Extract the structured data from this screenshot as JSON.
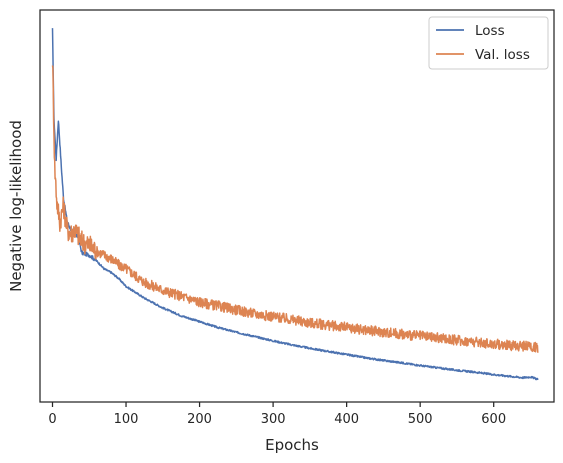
{
  "chart_data": {
    "type": "line",
    "title": "",
    "xlabel": "Epochs",
    "ylabel": "Negative log-likelihood",
    "xlim": [
      -17,
      682
    ],
    "ylim": [
      0,
      100
    ],
    "xticks": [
      0,
      100,
      200,
      300,
      400,
      500,
      600
    ],
    "xtick_labels": [
      "0",
      "100",
      "200",
      "300",
      "400",
      "500",
      "600"
    ],
    "y_tick_labels_shown": false,
    "grid": false,
    "legend_position": "upper right",
    "series": [
      {
        "name": "Loss",
        "color": "#4c72b0",
        "points": [
          [
            0,
            95
          ],
          [
            2,
            72
          ],
          [
            5,
            62
          ],
          [
            8,
            72
          ],
          [
            10,
            66
          ],
          [
            12,
            60
          ],
          [
            15,
            52
          ],
          [
            20,
            46
          ],
          [
            25,
            44
          ],
          [
            30,
            43
          ],
          [
            35,
            42
          ],
          [
            40,
            38
          ],
          [
            50,
            37.5
          ],
          [
            60,
            36
          ],
          [
            70,
            34
          ],
          [
            80,
            33
          ],
          [
            90,
            31.5
          ],
          [
            100,
            29.5
          ],
          [
            125,
            26.5
          ],
          [
            150,
            24
          ],
          [
            175,
            22
          ],
          [
            200,
            20.5
          ],
          [
            225,
            19
          ],
          [
            250,
            17.8
          ],
          [
            275,
            16.7
          ],
          [
            300,
            15.6
          ],
          [
            325,
            14.6
          ],
          [
            350,
            13.7
          ],
          [
            375,
            12.9
          ],
          [
            400,
            12.1
          ],
          [
            425,
            11.3
          ],
          [
            450,
            10.6
          ],
          [
            475,
            10
          ],
          [
            500,
            9.3
          ],
          [
            525,
            8.7
          ],
          [
            550,
            8.1
          ],
          [
            575,
            7.6
          ],
          [
            600,
            7
          ],
          [
            625,
            6.5
          ],
          [
            640,
            6.2
          ],
          [
            650,
            6.4
          ],
          [
            660,
            5.8
          ]
        ]
      },
      {
        "name": "Val. loss",
        "color": "#dd8452",
        "points": [
          [
            0,
            88
          ],
          [
            3,
            60
          ],
          [
            6,
            51
          ],
          [
            10,
            46
          ],
          [
            15,
            50
          ],
          [
            20,
            44
          ],
          [
            25,
            43
          ],
          [
            30,
            44
          ],
          [
            40,
            41
          ],
          [
            50,
            40
          ],
          [
            60,
            38.5
          ],
          [
            70,
            37.5
          ],
          [
            80,
            36.5
          ],
          [
            90,
            35
          ],
          [
            100,
            34
          ],
          [
            125,
            30.5
          ],
          [
            150,
            28.5
          ],
          [
            175,
            27
          ],
          [
            200,
            25.5
          ],
          [
            225,
            24.5
          ],
          [
            250,
            23.5
          ],
          [
            275,
            22.5
          ],
          [
            300,
            21.8
          ],
          [
            325,
            21
          ],
          [
            350,
            20.2
          ],
          [
            375,
            19.6
          ],
          [
            400,
            19
          ],
          [
            425,
            18.4
          ],
          [
            450,
            17.8
          ],
          [
            475,
            17.3
          ],
          [
            500,
            16.8
          ],
          [
            525,
            16.3
          ],
          [
            550,
            15.8
          ],
          [
            575,
            15.3
          ],
          [
            600,
            14.8
          ],
          [
            625,
            14.4
          ],
          [
            650,
            14.2
          ],
          [
            660,
            13.8
          ]
        ]
      }
    ]
  }
}
